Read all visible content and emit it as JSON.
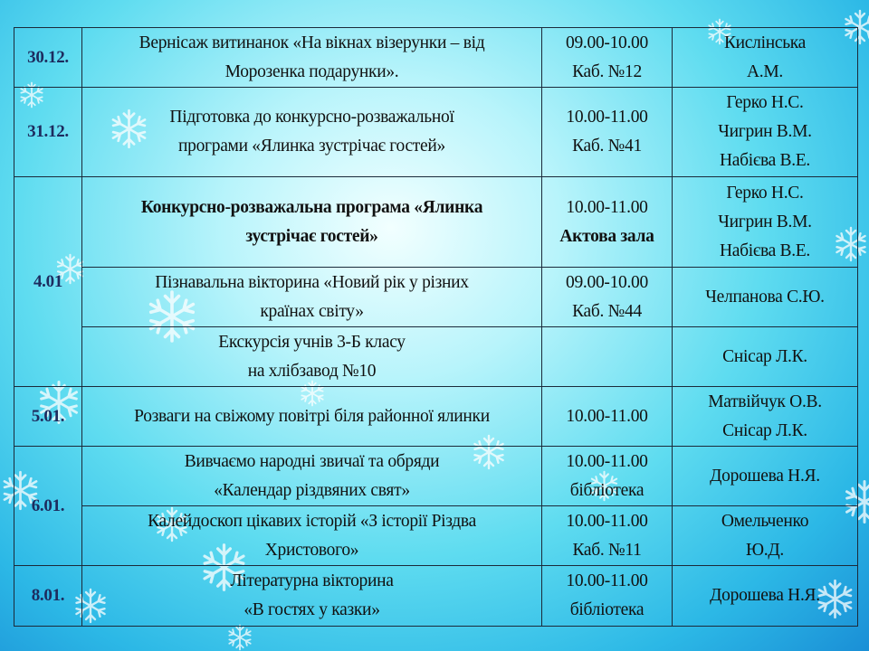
{
  "schedule": {
    "rows": [
      {
        "date": "30.12.",
        "span": 1,
        "event": [
          "Вернісаж витинанок «На вікнах візерунки – від",
          "Морозенка подарунки»."
        ],
        "bold": false,
        "time": [
          "09.00-10.00",
          "Каб. №12"
        ],
        "people": [
          "Кислінська",
          "А.М."
        ]
      },
      {
        "date": "31.12.",
        "span": 1,
        "event": [
          "Підготовка до конкурсно-розважальної",
          "програми «Ялинка зустрічає гостей»"
        ],
        "bold": false,
        "time": [
          "10.00-11.00",
          "Каб. №41"
        ],
        "people": [
          "Герко Н.С.",
          "Чигрин В.М.",
          "Набієва В.Е."
        ]
      },
      {
        "date": "4.01",
        "span": 3,
        "event": [
          "Конкурсно-розважальна програма «Ялинка",
          "зустрічає гостей»"
        ],
        "bold": true,
        "time": [
          "10.00-11.00",
          "Актова зала"
        ],
        "time_bold_second": true,
        "people": [
          "Герко Н.С.",
          "Чигрин В.М.",
          "Набієва В.Е."
        ]
      },
      {
        "date": null,
        "event": [
          "Пізнавальна вікторина «Новий рік у різних",
          "країнах світу»"
        ],
        "bold": false,
        "time": [
          "09.00-10.00",
          "Каб. №44"
        ],
        "people": [
          "Челпанова С.Ю."
        ]
      },
      {
        "date": null,
        "event": [
          "Екскурсія учнів 3-Б класу",
          "на хлібзавод №10"
        ],
        "bold": false,
        "time": [],
        "people": [
          "Снісар Л.К."
        ]
      },
      {
        "date": "5.01.",
        "span": 1,
        "event": [
          "Розваги на свіжому повітрі біля районної ялинки"
        ],
        "bold": false,
        "time": [
          "10.00-11.00"
        ],
        "people": [
          "Матвійчук О.В.",
          "Снісар Л.К."
        ]
      },
      {
        "date": "6.01.",
        "span": 2,
        "event": [
          "Вивчаємо народні звичаї та обряди",
          "«Календар різдвяних свят»"
        ],
        "bold": false,
        "time": [
          "10.00-11.00",
          "бібліотека"
        ],
        "people": [
          "Дорошева Н.Я."
        ]
      },
      {
        "date": null,
        "event": [
          "Калейдоскоп цікавих історій «З історії Різдва",
          "Христового»"
        ],
        "bold": false,
        "time": [
          "10.00-11.00",
          "Каб. №11"
        ],
        "people": [
          "Омельченко",
          "Ю.Д."
        ]
      },
      {
        "date": "8.01.",
        "span": 1,
        "event": [
          "Літературна вікторина",
          "«В гостях у казки»"
        ],
        "bold": false,
        "time": [
          "10.00-11.00",
          "бібліотека"
        ],
        "people": [
          "Дорошева Н.Я."
        ]
      }
    ]
  },
  "colors": {
    "date_text": "#1d2b5e",
    "border": "#1b2a3a",
    "background": "#5fdcf0"
  },
  "decoration_icon": "snowflake-icon"
}
